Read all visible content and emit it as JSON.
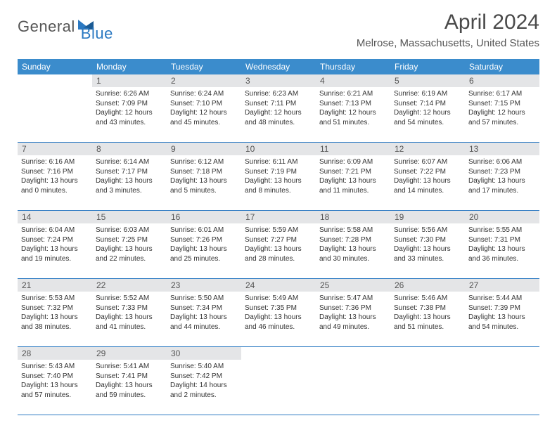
{
  "logo": {
    "part1": "General",
    "part2": "Blue"
  },
  "title": "April 2024",
  "location": "Melrose, Massachusetts, United States",
  "day_headers": [
    "Sunday",
    "Monday",
    "Tuesday",
    "Wednesday",
    "Thursday",
    "Friday",
    "Saturday"
  ],
  "header_bg": "#3b8ccc",
  "daynum_bg": "#e4e5e7",
  "rule_color": "#2b79c2",
  "weeks": [
    {
      "days": [
        {
          "num": "",
          "lines": []
        },
        {
          "num": "1",
          "lines": [
            "Sunrise: 6:26 AM",
            "Sunset: 7:09 PM",
            "Daylight: 12 hours",
            "and 43 minutes."
          ]
        },
        {
          "num": "2",
          "lines": [
            "Sunrise: 6:24 AM",
            "Sunset: 7:10 PM",
            "Daylight: 12 hours",
            "and 45 minutes."
          ]
        },
        {
          "num": "3",
          "lines": [
            "Sunrise: 6:23 AM",
            "Sunset: 7:11 PM",
            "Daylight: 12 hours",
            "and 48 minutes."
          ]
        },
        {
          "num": "4",
          "lines": [
            "Sunrise: 6:21 AM",
            "Sunset: 7:13 PM",
            "Daylight: 12 hours",
            "and 51 minutes."
          ]
        },
        {
          "num": "5",
          "lines": [
            "Sunrise: 6:19 AM",
            "Sunset: 7:14 PM",
            "Daylight: 12 hours",
            "and 54 minutes."
          ]
        },
        {
          "num": "6",
          "lines": [
            "Sunrise: 6:17 AM",
            "Sunset: 7:15 PM",
            "Daylight: 12 hours",
            "and 57 minutes."
          ]
        }
      ]
    },
    {
      "days": [
        {
          "num": "7",
          "lines": [
            "Sunrise: 6:16 AM",
            "Sunset: 7:16 PM",
            "Daylight: 13 hours",
            "and 0 minutes."
          ]
        },
        {
          "num": "8",
          "lines": [
            "Sunrise: 6:14 AM",
            "Sunset: 7:17 PM",
            "Daylight: 13 hours",
            "and 3 minutes."
          ]
        },
        {
          "num": "9",
          "lines": [
            "Sunrise: 6:12 AM",
            "Sunset: 7:18 PM",
            "Daylight: 13 hours",
            "and 5 minutes."
          ]
        },
        {
          "num": "10",
          "lines": [
            "Sunrise: 6:11 AM",
            "Sunset: 7:19 PM",
            "Daylight: 13 hours",
            "and 8 minutes."
          ]
        },
        {
          "num": "11",
          "lines": [
            "Sunrise: 6:09 AM",
            "Sunset: 7:21 PM",
            "Daylight: 13 hours",
            "and 11 minutes."
          ]
        },
        {
          "num": "12",
          "lines": [
            "Sunrise: 6:07 AM",
            "Sunset: 7:22 PM",
            "Daylight: 13 hours",
            "and 14 minutes."
          ]
        },
        {
          "num": "13",
          "lines": [
            "Sunrise: 6:06 AM",
            "Sunset: 7:23 PM",
            "Daylight: 13 hours",
            "and 17 minutes."
          ]
        }
      ]
    },
    {
      "days": [
        {
          "num": "14",
          "lines": [
            "Sunrise: 6:04 AM",
            "Sunset: 7:24 PM",
            "Daylight: 13 hours",
            "and 19 minutes."
          ]
        },
        {
          "num": "15",
          "lines": [
            "Sunrise: 6:03 AM",
            "Sunset: 7:25 PM",
            "Daylight: 13 hours",
            "and 22 minutes."
          ]
        },
        {
          "num": "16",
          "lines": [
            "Sunrise: 6:01 AM",
            "Sunset: 7:26 PM",
            "Daylight: 13 hours",
            "and 25 minutes."
          ]
        },
        {
          "num": "17",
          "lines": [
            "Sunrise: 5:59 AM",
            "Sunset: 7:27 PM",
            "Daylight: 13 hours",
            "and 28 minutes."
          ]
        },
        {
          "num": "18",
          "lines": [
            "Sunrise: 5:58 AM",
            "Sunset: 7:28 PM",
            "Daylight: 13 hours",
            "and 30 minutes."
          ]
        },
        {
          "num": "19",
          "lines": [
            "Sunrise: 5:56 AM",
            "Sunset: 7:30 PM",
            "Daylight: 13 hours",
            "and 33 minutes."
          ]
        },
        {
          "num": "20",
          "lines": [
            "Sunrise: 5:55 AM",
            "Sunset: 7:31 PM",
            "Daylight: 13 hours",
            "and 36 minutes."
          ]
        }
      ]
    },
    {
      "days": [
        {
          "num": "21",
          "lines": [
            "Sunrise: 5:53 AM",
            "Sunset: 7:32 PM",
            "Daylight: 13 hours",
            "and 38 minutes."
          ]
        },
        {
          "num": "22",
          "lines": [
            "Sunrise: 5:52 AM",
            "Sunset: 7:33 PM",
            "Daylight: 13 hours",
            "and 41 minutes."
          ]
        },
        {
          "num": "23",
          "lines": [
            "Sunrise: 5:50 AM",
            "Sunset: 7:34 PM",
            "Daylight: 13 hours",
            "and 44 minutes."
          ]
        },
        {
          "num": "24",
          "lines": [
            "Sunrise: 5:49 AM",
            "Sunset: 7:35 PM",
            "Daylight: 13 hours",
            "and 46 minutes."
          ]
        },
        {
          "num": "25",
          "lines": [
            "Sunrise: 5:47 AM",
            "Sunset: 7:36 PM",
            "Daylight: 13 hours",
            "and 49 minutes."
          ]
        },
        {
          "num": "26",
          "lines": [
            "Sunrise: 5:46 AM",
            "Sunset: 7:38 PM",
            "Daylight: 13 hours",
            "and 51 minutes."
          ]
        },
        {
          "num": "27",
          "lines": [
            "Sunrise: 5:44 AM",
            "Sunset: 7:39 PM",
            "Daylight: 13 hours",
            "and 54 minutes."
          ]
        }
      ]
    },
    {
      "days": [
        {
          "num": "28",
          "lines": [
            "Sunrise: 5:43 AM",
            "Sunset: 7:40 PM",
            "Daylight: 13 hours",
            "and 57 minutes."
          ]
        },
        {
          "num": "29",
          "lines": [
            "Sunrise: 5:41 AM",
            "Sunset: 7:41 PM",
            "Daylight: 13 hours",
            "and 59 minutes."
          ]
        },
        {
          "num": "30",
          "lines": [
            "Sunrise: 5:40 AM",
            "Sunset: 7:42 PM",
            "Daylight: 14 hours",
            "and 2 minutes."
          ]
        },
        {
          "num": "",
          "lines": []
        },
        {
          "num": "",
          "lines": []
        },
        {
          "num": "",
          "lines": []
        },
        {
          "num": "",
          "lines": []
        }
      ]
    }
  ]
}
